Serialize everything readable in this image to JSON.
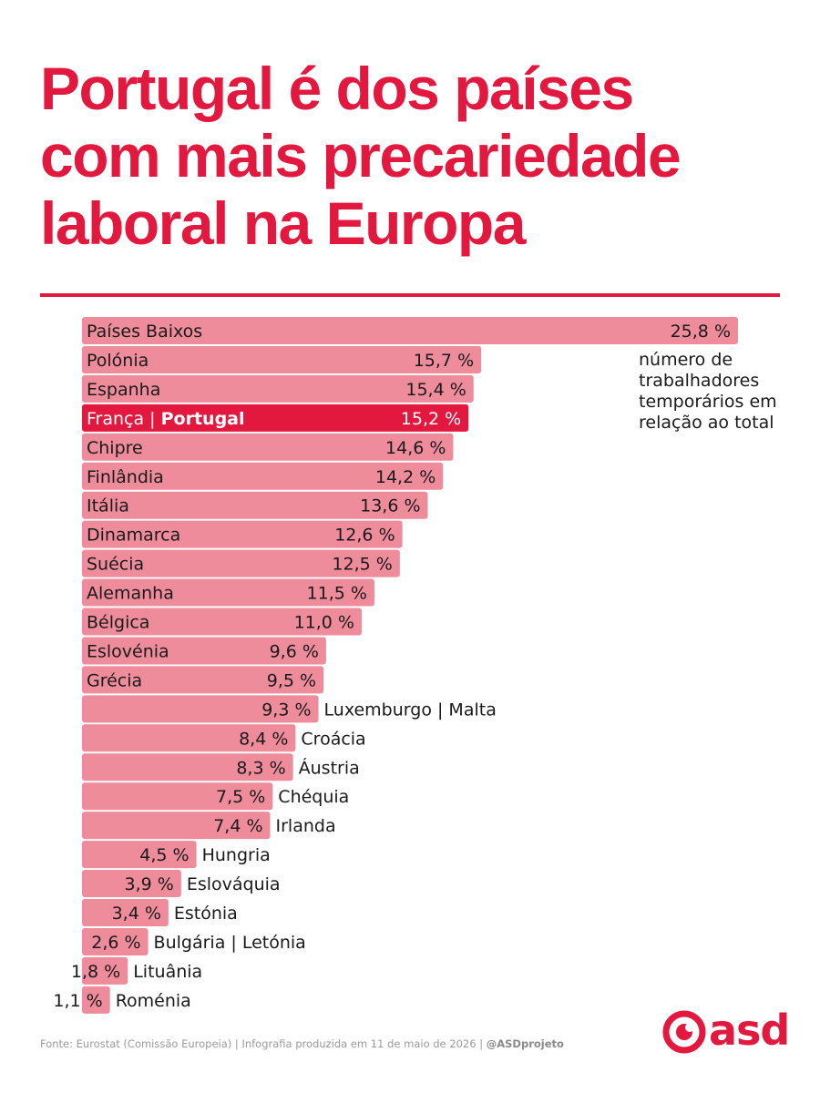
{
  "title_lines": [
    "Portugal é dos países",
    "com mais precariedade",
    "laboral na Europa"
  ],
  "note": "número de trabalhadores temporários em relação ao total",
  "footer": {
    "source": "Fonte: Eurostat (Comissão Europeia)",
    "separator": "|",
    "credit": "Infografia produzida em 11 de maio de 2026",
    "handle": "@ASDprojeto"
  },
  "logo": {
    "text": "asd",
    "icon": "asd-logo-icon"
  },
  "colors": {
    "accent": "#e3183f",
    "bar": "#ee8c9c",
    "highlight_bar": "#e3183f",
    "text": "#1a1a1a"
  },
  "chart_data": {
    "type": "bar",
    "orientation": "horizontal",
    "title": "Portugal é dos países com mais precariedade laboral na Europa",
    "unit": "%",
    "categories": [
      "Países Baixos",
      "Polónia",
      "Espanha",
      "França | Portugal",
      "Chipre",
      "Finlândia",
      "Itália",
      "Dinamarca",
      "Suécia",
      "Alemanha",
      "Bélgica",
      "Eslovénia",
      "Grécia",
      "Luxemburgo | Malta",
      "Croácia",
      "Áustria",
      "Chéquia",
      "Irlanda",
      "Hungria",
      "Eslováquia",
      "Estónia",
      "Bulgária | Letónia",
      "Lituânia",
      "Roménia"
    ],
    "values": [
      25.8,
      15.7,
      15.4,
      15.2,
      14.6,
      14.2,
      13.6,
      12.6,
      12.5,
      11.5,
      11.0,
      9.6,
      9.5,
      9.3,
      8.4,
      8.3,
      7.5,
      7.4,
      4.5,
      3.9,
      3.4,
      2.6,
      1.8,
      1.1
    ],
    "value_labels": [
      "25,8 %",
      "15,7 %",
      "15,4 %",
      "15,2 %",
      "14,6 %",
      "14,2 %",
      "13,6 %",
      "12,6 %",
      "12,5 %",
      "11,5 %",
      "11,0 %",
      "9,6 %",
      "9,5 %",
      "9,3 %",
      "8,4 %",
      "8,3 %",
      "7,5 %",
      "7,4 %",
      "4,5 %",
      "3,9 %",
      "3,4 %",
      "2,6 %",
      "1,8 %",
      "1,1 %"
    ],
    "highlight": {
      "index": 3,
      "prefix": "França",
      "separator": " | ",
      "emphasis": "Portugal"
    },
    "label_outside_from_index": 13,
    "xlim": [
      0,
      25.8
    ],
    "grid": false,
    "legend": "none"
  }
}
